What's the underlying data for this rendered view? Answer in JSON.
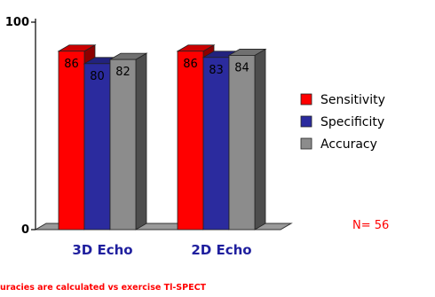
{
  "chart_data": {
    "type": "bar",
    "title": "",
    "xlabel": "",
    "ylabel": "",
    "ylim": [
      0,
      100
    ],
    "yticks": [
      "0",
      "100"
    ],
    "categories": [
      "3D Echo",
      "2D Echo"
    ],
    "series": [
      {
        "name": "Sensitivity",
        "color": "#ff0000",
        "values": [
          86,
          86
        ]
      },
      {
        "name": "Specificity",
        "color": "#2b2b9e",
        "values": [
          80,
          83
        ]
      },
      {
        "name": "Accuracy",
        "color": "#8c8c8c",
        "values": [
          82,
          84
        ]
      }
    ],
    "legend_position": "right",
    "grid": false
  },
  "annotation": "N= 56",
  "footnote": "uracies are calculated vs exercise Tl-SPECT"
}
